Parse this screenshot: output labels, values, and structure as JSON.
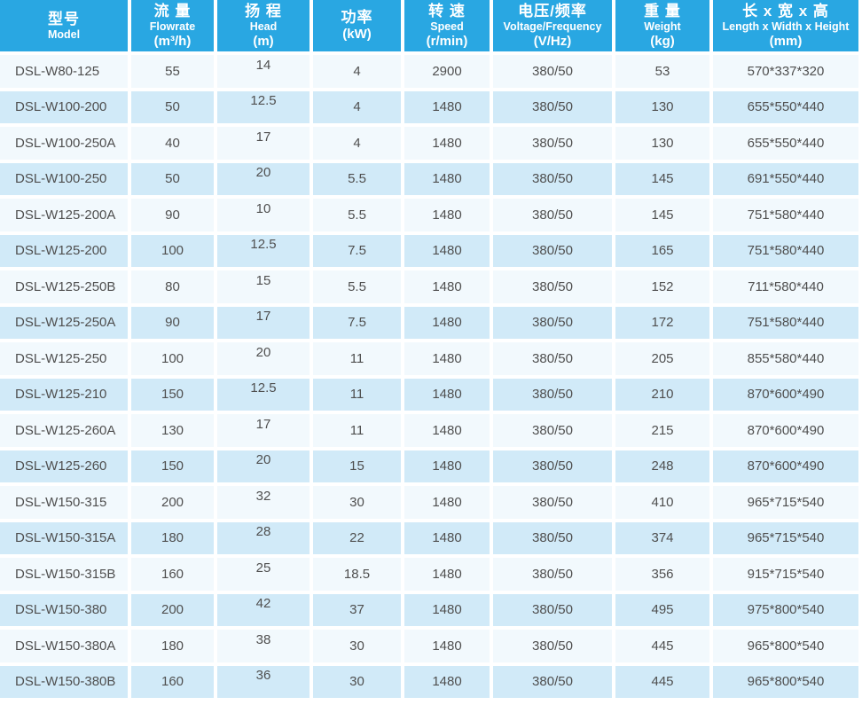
{
  "colors": {
    "header_bg": "#29a7e2",
    "header_text": "#ffffff",
    "row_light": "#f2f9fd",
    "row_alt": "#d1eaf8",
    "body_text": "#4f4f4f",
    "gap": "#ffffff"
  },
  "table": {
    "columns": [
      {
        "id": "model",
        "lines": [
          "型号",
          "Model"
        ]
      },
      {
        "id": "flowrate",
        "lines": [
          "流 量",
          "Flowrate",
          "(m³/h)"
        ]
      },
      {
        "id": "head",
        "lines": [
          "扬 程",
          "Head",
          "(m)"
        ]
      },
      {
        "id": "power",
        "lines": [
          "功率",
          "(kW)"
        ]
      },
      {
        "id": "speed",
        "lines": [
          "转 速",
          "Speed",
          "(r/min)"
        ]
      },
      {
        "id": "voltage",
        "lines": [
          "电压/频率",
          "Voltage/Frequency",
          "(V/Hz)"
        ]
      },
      {
        "id": "weight",
        "lines": [
          "重 量",
          "Weight",
          "(kg)"
        ]
      },
      {
        "id": "dims",
        "lines": [
          "长 x 宽 x 高",
          "Length x Width x Height",
          "(mm)"
        ]
      }
    ],
    "rows": [
      [
        "DSL-W80-125",
        "55",
        "14",
        "4",
        "2900",
        "380/50",
        "53",
        "570*337*320"
      ],
      [
        "DSL-W100-200",
        "50",
        "12.5",
        "4",
        "1480",
        "380/50",
        "130",
        "655*550*440"
      ],
      [
        "DSL-W100-250A",
        "40",
        "17",
        "4",
        "1480",
        "380/50",
        "130",
        "655*550*440"
      ],
      [
        "DSL-W100-250",
        "50",
        "20",
        "5.5",
        "1480",
        "380/50",
        "145",
        "691*550*440"
      ],
      [
        "DSL-W125-200A",
        "90",
        "10",
        "5.5",
        "1480",
        "380/50",
        "145",
        "751*580*440"
      ],
      [
        "DSL-W125-200",
        "100",
        "12.5",
        "7.5",
        "1480",
        "380/50",
        "165",
        "751*580*440"
      ],
      [
        "DSL-W125-250B",
        "80",
        "15",
        "5.5",
        "1480",
        "380/50",
        "152",
        "711*580*440"
      ],
      [
        "DSL-W125-250A",
        "90",
        "17",
        "7.5",
        "1480",
        "380/50",
        "172",
        "751*580*440"
      ],
      [
        "DSL-W125-250",
        "100",
        "20",
        "11",
        "1480",
        "380/50",
        "205",
        "855*580*440"
      ],
      [
        "DSL-W125-210",
        "150",
        "12.5",
        "11",
        "1480",
        "380/50",
        "210",
        "870*600*490"
      ],
      [
        "DSL-W125-260A",
        "130",
        "17",
        "11",
        "1480",
        "380/50",
        "215",
        "870*600*490"
      ],
      [
        "DSL-W125-260",
        "150",
        "20",
        "15",
        "1480",
        "380/50",
        "248",
        "870*600*490"
      ],
      [
        "DSL-W150-315",
        "200",
        "32",
        "30",
        "1480",
        "380/50",
        "410",
        "965*715*540"
      ],
      [
        "DSL-W150-315A",
        "180",
        "28",
        "22",
        "1480",
        "380/50",
        "374",
        "965*715*540"
      ],
      [
        "DSL-W150-315B",
        "160",
        "25",
        "18.5",
        "1480",
        "380/50",
        "356",
        "915*715*540"
      ],
      [
        "DSL-W150-380",
        "200",
        "42",
        "37",
        "1480",
        "380/50",
        "495",
        "975*800*540"
      ],
      [
        "DSL-W150-380A",
        "180",
        "38",
        "30",
        "1480",
        "380/50",
        "445",
        "965*800*540"
      ],
      [
        "DSL-W150-380B",
        "160",
        "36",
        "30",
        "1480",
        "380/50",
        "445",
        "965*800*540"
      ]
    ]
  }
}
